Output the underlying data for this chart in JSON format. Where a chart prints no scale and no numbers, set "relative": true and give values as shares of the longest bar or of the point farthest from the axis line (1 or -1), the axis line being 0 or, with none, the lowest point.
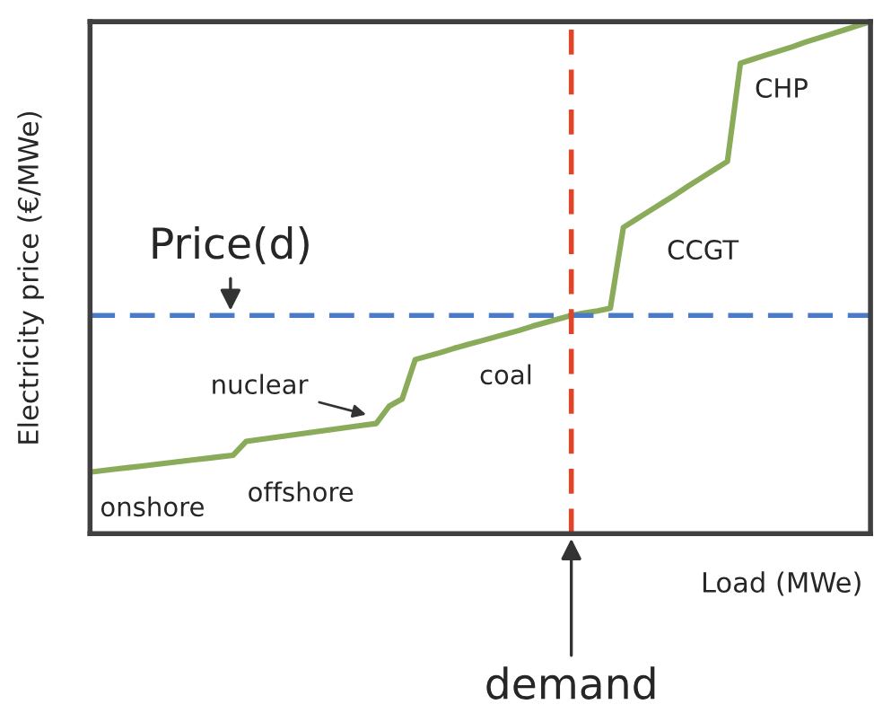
{
  "chart_data": {
    "type": "line",
    "relative": true,
    "ylabel": "Electricity price (€/MWe)",
    "xlabel": "Load (MWe)",
    "categories": [
      null,
      null,
      null,
      null,
      null,
      null,
      null,
      null,
      null,
      null,
      null,
      null,
      null,
      null,
      null,
      null,
      null,
      null,
      null,
      null,
      null,
      null,
      null,
      null,
      null,
      null,
      null,
      null,
      null,
      null,
      null,
      null,
      null,
      null,
      null,
      null,
      null,
      null,
      null,
      null,
      null,
      null,
      null,
      null,
      null,
      null,
      null,
      null,
      null,
      null,
      null,
      null,
      null,
      null,
      null,
      null,
      null,
      null,
      null,
      null,
      null
    ],
    "series": [
      {
        "color": "#8aac5a",
        "values": [
          0.12,
          0.123,
          0.126,
          0.129,
          0.132,
          0.135,
          0.138,
          0.141,
          0.144,
          0.147,
          0.15,
          0.153,
          0.18,
          0.1835,
          0.187,
          0.1905,
          0.194,
          0.1975,
          0.201,
          0.2045,
          0.208,
          0.2115,
          0.215,
          0.249,
          0.263,
          0.34,
          0.347,
          0.354,
          0.362,
          0.369,
          0.376,
          0.383,
          0.39,
          0.397,
          0.405,
          0.412,
          0.419,
          0.426,
          0.431,
          0.435,
          0.44,
          0.598,
          0.614,
          0.63,
          0.646,
          0.662,
          0.679,
          0.695,
          0.711,
          0.727,
          0.919,
          0.927,
          0.935,
          0.943,
          0.951,
          0.96,
          0.968,
          0.976,
          0.984,
          0.992,
          1
        ]
      }
    ],
    "ref_lines": [
      {
        "axis": "y",
        "value": 0.426,
        "label": "Price(d)",
        "color": "#4a7ac8",
        "line_style": "dashed"
      },
      {
        "axis": "x",
        "label": "demand",
        "color": "#e0452a",
        "line_style": "dashed"
      }
    ],
    "annotations": [
      "onshore",
      "offshore",
      "nuclear",
      "coal",
      "CCGT",
      "CHP"
    ]
  }
}
